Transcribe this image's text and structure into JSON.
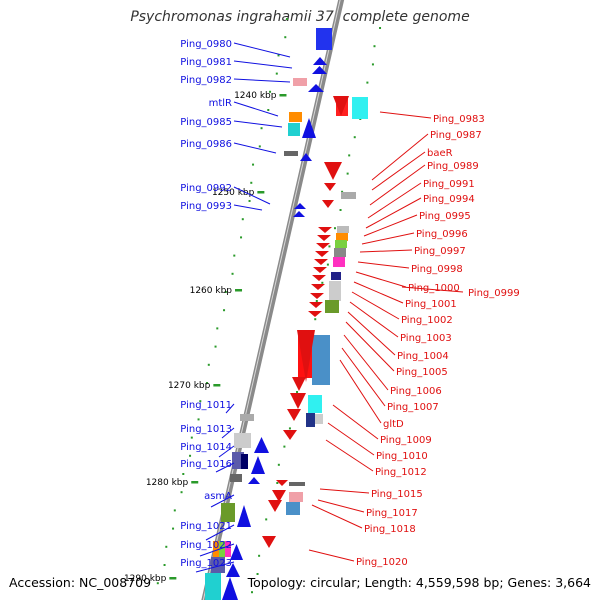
{
  "title": "Psychromonas ingrahamii 37, complete genome",
  "footer": {
    "accession": "Accession: NC_008709",
    "summary": "Topology: circular; Length: 4,559,598 bp; Genes: 3,664"
  },
  "colors": {
    "backbone": "#8a8a8a",
    "plus_strand": "#1010e0",
    "minus_strand": "#e01010",
    "tick": "#2a9a2a"
  },
  "kbp_marks": [
    {
      "label": "1240 kbp"
    },
    {
      "label": "1250 kbp"
    },
    {
      "label": "1260 kbp"
    },
    {
      "label": "1270 kbp"
    },
    {
      "label": "1280 kbp"
    },
    {
      "label": "1290 kbp"
    }
  ],
  "genes_left": [
    {
      "name": "Ping_0980"
    },
    {
      "name": "Ping_0981"
    },
    {
      "name": "Ping_0982"
    },
    {
      "name": "mtlR"
    },
    {
      "name": "Ping_0985"
    },
    {
      "name": "Ping_0986"
    },
    {
      "name": "Ping_0992"
    },
    {
      "name": "Ping_0993"
    },
    {
      "name": "Ping_1011"
    },
    {
      "name": "Ping_1013"
    },
    {
      "name": "Ping_1014"
    },
    {
      "name": "Ping_1016"
    },
    {
      "name": "asmA"
    },
    {
      "name": "Ping_1021"
    },
    {
      "name": "Ping_1022"
    },
    {
      "name": "Ping_1023"
    }
  ],
  "genes_right": [
    {
      "name": "Ping_0983"
    },
    {
      "name": "Ping_0987"
    },
    {
      "name": "baeR"
    },
    {
      "name": "Ping_0989"
    },
    {
      "name": "Ping_0991"
    },
    {
      "name": "Ping_0994"
    },
    {
      "name": "Ping_0995"
    },
    {
      "name": "Ping_0996"
    },
    {
      "name": "Ping_0997"
    },
    {
      "name": "Ping_0998"
    },
    {
      "name": "Ping_1000"
    },
    {
      "name": "Ping_0999"
    },
    {
      "name": "Ping_1001"
    },
    {
      "name": "Ping_1002"
    },
    {
      "name": "Ping_1003"
    },
    {
      "name": "Ping_1004"
    },
    {
      "name": "Ping_1005"
    },
    {
      "name": "Ping_1006"
    },
    {
      "name": "Ping_1007"
    },
    {
      "name": "gltD"
    },
    {
      "name": "Ping_1009"
    },
    {
      "name": "Ping_1010"
    },
    {
      "name": "Ping_1012"
    },
    {
      "name": "Ping_1015"
    },
    {
      "name": "Ping_1017"
    },
    {
      "name": "Ping_1018"
    },
    {
      "name": "Ping_1020"
    }
  ]
}
